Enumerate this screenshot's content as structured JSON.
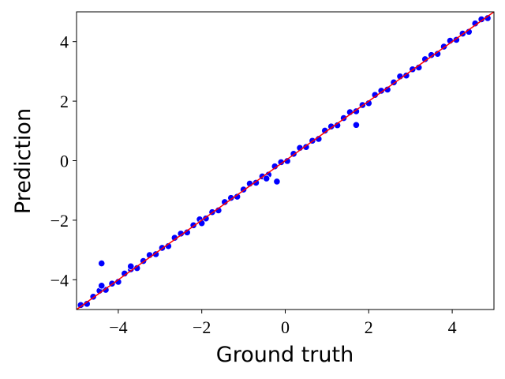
{
  "chart_data": {
    "type": "scatter",
    "x_label": "Ground truth",
    "y_label": "Prediction",
    "xlim": [
      -5,
      5
    ],
    "ylim": [
      -5,
      5
    ],
    "xticks": [
      {
        "value": -4,
        "label": "−4"
      },
      {
        "value": -2,
        "label": "−2"
      },
      0,
      2,
      4
    ],
    "yticks": [
      {
        "value": -4,
        "label": "−4"
      },
      {
        "value": -2,
        "label": "−2"
      },
      0,
      2,
      4
    ],
    "color": "#0000ff",
    "edge_color": "#ffffff",
    "x": [
      -4.9,
      -4.75,
      -4.6,
      -4.45,
      -4.3,
      -4.15,
      -4.0,
      -3.85,
      -3.7,
      -3.55,
      -3.4,
      -3.25,
      -3.1,
      -2.95,
      -2.8,
      -2.65,
      -2.5,
      -2.35,
      -2.2,
      -2.05,
      -1.9,
      -1.75,
      -1.6,
      -1.45,
      -1.3,
      -1.15,
      -1.0,
      -0.85,
      -0.7,
      -0.55,
      -0.4,
      -0.25,
      -0.1,
      0.05,
      0.2,
      0.35,
      0.5,
      0.65,
      0.8,
      0.95,
      1.1,
      1.25,
      1.4,
      1.55,
      1.7,
      1.85,
      2.0,
      2.15,
      2.3,
      2.45,
      2.6,
      2.75,
      2.9,
      3.05,
      3.2,
      3.35,
      3.5,
      3.65,
      3.8,
      3.95,
      4.1,
      4.25,
      4.4,
      4.55,
      4.7,
      4.85,
      -4.4,
      -3.7,
      1.7,
      -0.2,
      -0.45,
      -4.4,
      -2.0
    ],
    "values": [
      -4.85,
      -4.81,
      -4.57,
      -4.37,
      -4.34,
      -4.13,
      -4.07,
      -3.79,
      -3.65,
      -3.61,
      -3.37,
      -3.17,
      -3.14,
      -2.93,
      -2.87,
      -2.59,
      -2.45,
      -2.41,
      -2.17,
      -1.97,
      -1.94,
      -1.73,
      -1.67,
      -1.39,
      -1.25,
      -1.21,
      -0.97,
      -0.77,
      -0.74,
      -0.53,
      -0.47,
      -0.19,
      -0.05,
      -0.01,
      0.23,
      0.43,
      0.46,
      0.67,
      0.73,
      1.01,
      1.15,
      1.19,
      1.43,
      1.63,
      1.66,
      1.87,
      1.93,
      2.21,
      2.35,
      2.39,
      2.63,
      2.83,
      2.86,
      3.07,
      3.13,
      3.41,
      3.55,
      3.59,
      3.83,
      4.03,
      4.06,
      4.27,
      4.33,
      4.61,
      4.75,
      4.79,
      -3.45,
      -3.55,
      1.2,
      -0.7,
      -0.6,
      -4.2,
      -2.1
    ],
    "reference_line": {
      "x": [
        -5,
        5
      ],
      "y": [
        -5,
        5
      ],
      "color": "#ff0000"
    }
  }
}
